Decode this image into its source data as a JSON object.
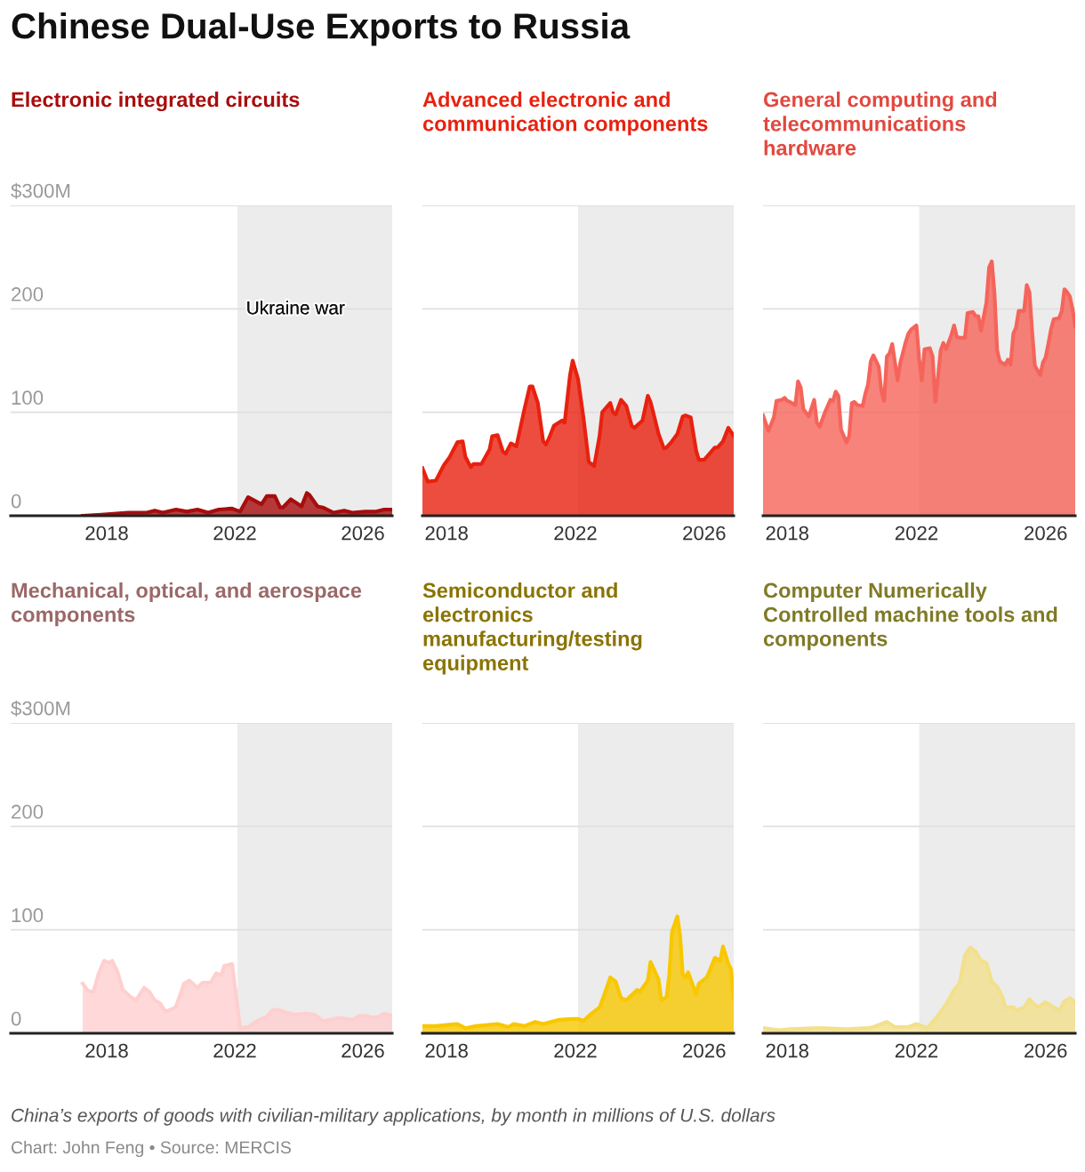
{
  "chart_data": [
    {
      "type": "other",
      "title": "Chinese Dual-Use Exports to Russia",
      "annotations": [
        "China’s exports of goods with civilian-military applications, by month in millions of U.S. dollars",
        "Chart: John Feng • Source: MERCIS"
      ]
    },
    {
      "type": "area",
      "title": "Electronic integrated circuits",
      "xlim": [
        "2015-01",
        "2026-12"
      ],
      "xticks": [
        "2018",
        "2022",
        "2026"
      ],
      "ylim": [
        0,
        300
      ],
      "yticks": [
        0,
        100,
        200,
        {
          "value": 300,
          "label": "$300M"
        }
      ],
      "grid": "y",
      "bands": [
        {
          "axis": "x",
          "from": "2022-02",
          "to": "2026-12",
          "label": "Ukraine war",
          "color": "#ececec"
        }
      ],
      "series": [
        {
          "color": "#a80d0d",
          "x": [
            "2017-04",
            "2017-11",
            "2018-09",
            "2019-04",
            "2019-07",
            "2019-10",
            "2020-03",
            "2020-07",
            "2020-11",
            "2021-03",
            "2021-07",
            "2021-12",
            "2022-03",
            "2022-06",
            "2022-11",
            "2023-01",
            "2023-04",
            "2023-06",
            "2023-07",
            "2023-10",
            "2024-02",
            "2024-04",
            "2024-05",
            "2024-08",
            "2024-10",
            "2025-02",
            "2025-06",
            "2025-09",
            "2026-02",
            "2026-06",
            "2026-09",
            "2026-12"
          ],
          "values": [
            0,
            1,
            3,
            3,
            5,
            3,
            6,
            4,
            6,
            3,
            6,
            7,
            4,
            18,
            11,
            19,
            19,
            8,
            8,
            16,
            9,
            22,
            20,
            9,
            8,
            3,
            5,
            3,
            4,
            4,
            6,
            6
          ]
        }
      ]
    },
    {
      "type": "area",
      "title": "Advanced electronic and\ncommunication components",
      "xlim": [
        "2017-04",
        "2026-12"
      ],
      "xticks": [
        "2018",
        "2022",
        "2026"
      ],
      "ylim": [
        0,
        300
      ],
      "yticks": [
        0,
        100,
        200,
        300
      ],
      "tick_labels": "x",
      "grid": "y",
      "bands": [
        {
          "axis": "x",
          "from": "2022-02",
          "to": "2026-12",
          "color": "#ececec"
        }
      ],
      "series": [
        {
          "color": "#e8210f",
          "x": [
            "2017-04",
            "2017-06",
            "2017-09",
            "2017-12",
            "2018-02",
            "2018-05",
            "2018-07",
            "2018-08",
            "2018-10",
            "2018-11",
            "2019-02",
            "2019-05",
            "2019-06",
            "2019-08",
            "2019-10",
            "2019-11",
            "2020-01",
            "2020-03",
            "2020-04",
            "2020-06",
            "2020-08",
            "2020-09",
            "2020-11",
            "2021-01",
            "2021-02",
            "2021-03",
            "2021-05",
            "2021-08",
            "2021-09",
            "2021-11",
            "2021-12",
            "2022-02",
            "2022-04",
            "2022-06",
            "2022-08",
            "2022-10",
            "2022-11",
            "2023-02",
            "2023-03",
            "2023-04",
            "2023-06",
            "2023-08",
            "2023-10",
            "2023-11",
            "2024-02",
            "2024-04",
            "2024-05",
            "2024-06",
            "2024-08",
            "2024-10",
            "2024-11",
            "2025-01",
            "2025-03",
            "2025-05",
            "2025-06",
            "2025-08",
            "2025-10",
            "2025-11",
            "2026-01",
            "2026-02",
            "2026-05",
            "2026-06",
            "2026-08",
            "2026-10",
            "2026-12"
          ],
          "values": [
            46,
            33,
            34,
            49,
            56,
            71,
            72,
            57,
            47,
            50,
            50,
            64,
            77,
            78,
            62,
            60,
            70,
            67,
            79,
            103,
            125,
            125,
            109,
            72,
            69,
            74,
            87,
            92,
            90,
            136,
            150,
            132,
            95,
            52,
            48,
            77,
            100,
            109,
            100,
            98,
            112,
            106,
            87,
            85,
            92,
            116,
            110,
            100,
            79,
            65,
            66,
            72,
            79,
            96,
            97,
            95,
            63,
            54,
            54,
            57,
            66,
            66,
            72,
            85,
            77
          ]
        }
      ]
    },
    {
      "type": "area",
      "title": "General computing and\ntelecommunications\nhardware",
      "xlim": [
        "2017-04",
        "2026-12"
      ],
      "xticks": [
        "2018",
        "2022",
        "2026"
      ],
      "ylim": [
        0,
        300
      ],
      "yticks": [
        0,
        100,
        200,
        300
      ],
      "tick_labels": "x",
      "grid": "y",
      "bands": [
        {
          "axis": "x",
          "from": "2022-02",
          "to": "2026-12",
          "color": "#ececec"
        }
      ],
      "series": [
        {
          "color": "#f5645a",
          "x": [
            "2017-04",
            "2017-06",
            "2017-08",
            "2017-09",
            "2017-11",
            "2017-12",
            "2018-01",
            "2018-02",
            "2018-04",
            "2018-05",
            "2018-06",
            "2018-07",
            "2018-09",
            "2018-11",
            "2018-12",
            "2019-01",
            "2019-03",
            "2019-05",
            "2019-06",
            "2019-07",
            "2019-08",
            "2019-09",
            "2019-11",
            "2019-12",
            "2020-01",
            "2020-02",
            "2020-03",
            "2020-05",
            "2020-06",
            "2020-07",
            "2020-08",
            "2020-09",
            "2020-11",
            "2020-12",
            "2021-01",
            "2021-02",
            "2021-03",
            "2021-04",
            "2021-06",
            "2021-07",
            "2021-08",
            "2021-09",
            "2021-10",
            "2021-11",
            "2022-01",
            "2022-02",
            "2022-03",
            "2022-04",
            "2022-06",
            "2022-07",
            "2022-08",
            "2022-09",
            "2022-10",
            "2022-11",
            "2022-12",
            "2023-02",
            "2023-03",
            "2023-04",
            "2023-05",
            "2023-07",
            "2023-08",
            "2023-10",
            "2023-11",
            "2023-12",
            "2024-01",
            "2024-03",
            "2024-04",
            "2024-05",
            "2024-06",
            "2024-07",
            "2024-08",
            "2024-10",
            "2024-11",
            "2024-12",
            "2025-01",
            "2025-02",
            "2025-03",
            "2025-05",
            "2025-06",
            "2025-07",
            "2025-08",
            "2025-09",
            "2025-11",
            "2025-12",
            "2026-01",
            "2026-02",
            "2026-03",
            "2026-04",
            "2026-06",
            "2026-07",
            "2026-08",
            "2026-09",
            "2026-10",
            "2026-11",
            "2026-12"
          ],
          "values": [
            97,
            82,
            95,
            111,
            112,
            114,
            111,
            110,
            107,
            130,
            124,
            103,
            96,
            112,
            90,
            86,
            100,
            112,
            111,
            120,
            116,
            83,
            71,
            77,
            109,
            110,
            107,
            106,
            118,
            127,
            149,
            155,
            144,
            120,
            111,
            154,
            157,
            166,
            131,
            148,
            158,
            168,
            176,
            180,
            184,
            152,
            131,
            161,
            162,
            154,
            110,
            134,
            160,
            167,
            161,
            175,
            184,
            173,
            172,
            172,
            196,
            197,
            193,
            193,
            179,
            206,
            240,
            246,
            215,
            160,
            149,
            146,
            151,
            146,
            176,
            182,
            198,
            198,
            223,
            216,
            178,
            145,
            136,
            148,
            153,
            166,
            180,
            190,
            191,
            198,
            219,
            216,
            212,
            200,
            183
          ]
        }
      ]
    },
    {
      "type": "area",
      "title": "Mechanical, optical, and aerospace\ncomponents",
      "xlim": [
        "2015-01",
        "2026-12"
      ],
      "xticks": [
        "2018",
        "2022",
        "2026"
      ],
      "ylim": [
        0,
        300
      ],
      "yticks": [
        0,
        100,
        200,
        {
          "value": 300,
          "label": "$300M"
        }
      ],
      "grid": "y",
      "bands": [
        {
          "axis": "x",
          "from": "2022-02",
          "to": "2026-12",
          "color": "#ececec"
        }
      ],
      "series": [
        {
          "color": "#ffcfcf",
          "x": [
            "2017-04",
            "2017-06",
            "2017-08",
            "2017-10",
            "2017-12",
            "2018-02",
            "2018-03",
            "2018-05",
            "2018-07",
            "2018-10",
            "2018-12",
            "2019-03",
            "2019-05",
            "2019-07",
            "2019-09",
            "2019-11",
            "2020-02",
            "2020-03",
            "2020-06",
            "2020-08",
            "2020-11",
            "2021-01",
            "2021-04",
            "2021-06",
            "2021-08",
            "2021-09",
            "2021-12",
            "2022-03",
            "2022-06",
            "2022-10",
            "2023-01",
            "2023-03",
            "2023-05",
            "2023-07",
            "2023-11",
            "2024-04",
            "2024-07",
            "2024-10",
            "2025-01",
            "2025-04",
            "2025-09",
            "2025-12",
            "2026-02",
            "2026-05",
            "2026-07",
            "2026-09",
            "2026-12"
          ],
          "values": [
            48,
            41,
            40,
            58,
            70,
            68,
            70,
            60,
            42,
            35,
            32,
            44,
            40,
            32,
            29,
            21,
            24,
            26,
            48,
            51,
            44,
            49,
            49,
            58,
            56,
            65,
            67,
            5,
            6,
            13,
            16,
            22,
            23,
            21,
            18,
            19,
            18,
            12,
            13,
            15,
            13,
            17,
            17,
            15,
            16,
            19,
            17
          ]
        }
      ]
    },
    {
      "type": "area",
      "title": "Semiconductor and\nelectronics\nmanufacturing/testing\nequipment",
      "xlim": [
        "2017-04",
        "2026-12"
      ],
      "xticks": [
        "2018",
        "2022",
        "2026"
      ],
      "ylim": [
        0,
        300
      ],
      "yticks": [
        0,
        100,
        200,
        300
      ],
      "tick_labels": "x",
      "grid": "y",
      "bands": [
        {
          "axis": "x",
          "from": "2022-02",
          "to": "2026-12",
          "color": "#ececec"
        }
      ],
      "series": [
        {
          "color": "#f8c700",
          "x": [
            "2017-04",
            "2017-09",
            "2018-05",
            "2018-08",
            "2018-12",
            "2019-08",
            "2019-12",
            "2020-02",
            "2020-06",
            "2020-10",
            "2021-01",
            "2021-07",
            "2021-12",
            "2022-02",
            "2022-04",
            "2022-07",
            "2022-10",
            "2022-12",
            "2023-02",
            "2023-04",
            "2023-06",
            "2023-08",
            "2023-10",
            "2023-12",
            "2024-01",
            "2024-04",
            "2024-05",
            "2024-08",
            "2024-09",
            "2024-11",
            "2024-12",
            "2025-01",
            "2025-03",
            "2025-04",
            "2025-05",
            "2025-06",
            "2025-07",
            "2025-10",
            "2025-11",
            "2026-02",
            "2026-05",
            "2026-07",
            "2026-08",
            "2026-10",
            "2026-11",
            "2026-12"
          ],
          "values": [
            7,
            7,
            9,
            5,
            7,
            9,
            6,
            9,
            7,
            11,
            9,
            13,
            14,
            14,
            12,
            19,
            25,
            39,
            54,
            50,
            34,
            32,
            37,
            42,
            40,
            51,
            69,
            52,
            32,
            35,
            57,
            98,
            113,
            95,
            57,
            54,
            59,
            38,
            48,
            54,
            73,
            70,
            84,
            67,
            62,
            34
          ]
        }
      ]
    },
    {
      "type": "area",
      "title": "Computer Numerically\nControlled machine tools and\ncomponents",
      "xlim": [
        "2017-04",
        "2026-12"
      ],
      "xticks": [
        "2018",
        "2022",
        "2026"
      ],
      "ylim": [
        0,
        300
      ],
      "yticks": [
        0,
        100,
        200,
        300
      ],
      "tick_labels": "x",
      "grid": "y",
      "bands": [
        {
          "axis": "x",
          "from": "2022-02",
          "to": "2026-12",
          "color": "#ececec"
        }
      ],
      "series": [
        {
          "color": "#f2e08c",
          "x": [
            "2017-04",
            "2017-10",
            "2018-02",
            "2019-01",
            "2019-11",
            "2020-07",
            "2020-09",
            "2020-12",
            "2021-02",
            "2021-05",
            "2021-10",
            "2022-01",
            "2022-05",
            "2022-09",
            "2022-12",
            "2023-03",
            "2023-05",
            "2023-07",
            "2023-09",
            "2023-11",
            "2024-01",
            "2024-03",
            "2024-05",
            "2024-07",
            "2024-09",
            "2024-10",
            "2025-01",
            "2025-02",
            "2025-05",
            "2025-07",
            "2025-10",
            "2026-01",
            "2026-06",
            "2026-08",
            "2026-10",
            "2026-12"
          ],
          "values": [
            5,
            3,
            4,
            5,
            4,
            5,
            6,
            9,
            11,
            6,
            6,
            9,
            5,
            17,
            28,
            42,
            48,
            75,
            83,
            79,
            70,
            68,
            50,
            45,
            35,
            25,
            25,
            22,
            25,
            33,
            25,
            30,
            22,
            31,
            34,
            30
          ]
        }
      ]
    }
  ]
}
